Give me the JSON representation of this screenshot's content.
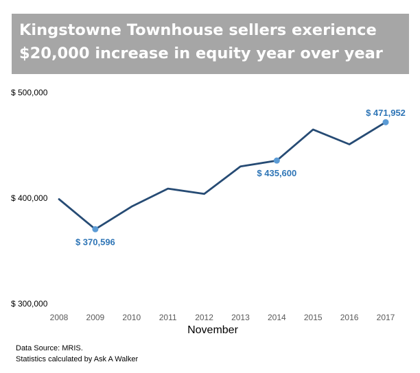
{
  "title": "Kingstowne Townhouse sellers exerience $20,000 increase in equity year over year",
  "footnotes": [
    "Data Source: MRIS.",
    "Statistics calculated by Ask A Walker"
  ],
  "colors": {
    "line": "#264b74",
    "marker": "#5b9bd5",
    "label": "#2e75b6",
    "banner": "#a6a6a6"
  },
  "chart_data": {
    "type": "line",
    "title": "Kingstowne Townhouse sellers exerience $20,000 increase in equity year over year",
    "xlabel": "November",
    "ylabel": "",
    "categories": [
      "2008",
      "2009",
      "2010",
      "2011",
      "2012",
      "2013",
      "2014",
      "2015",
      "2016",
      "2017"
    ],
    "series": [
      {
        "values": [
          399000,
          370596,
          392000,
          409000,
          404000,
          430000,
          435600,
          465000,
          451000,
          471952
        ]
      }
    ],
    "ylim": [
      300000,
      500000
    ],
    "yticks": [
      {
        "value": 300000,
        "label": "$ 300,000"
      },
      {
        "value": 400000,
        "label": "$ 400,000"
      },
      {
        "value": 500000,
        "label": "$ 500,000"
      }
    ],
    "grid": false,
    "legend": "none",
    "data_labels": [
      {
        "index": 1,
        "text": "$ 370,596",
        "position": "below"
      },
      {
        "index": 6,
        "text": "$ 435,600",
        "position": "below"
      },
      {
        "index": 9,
        "text": "$ 471,952",
        "position": "above"
      }
    ]
  }
}
